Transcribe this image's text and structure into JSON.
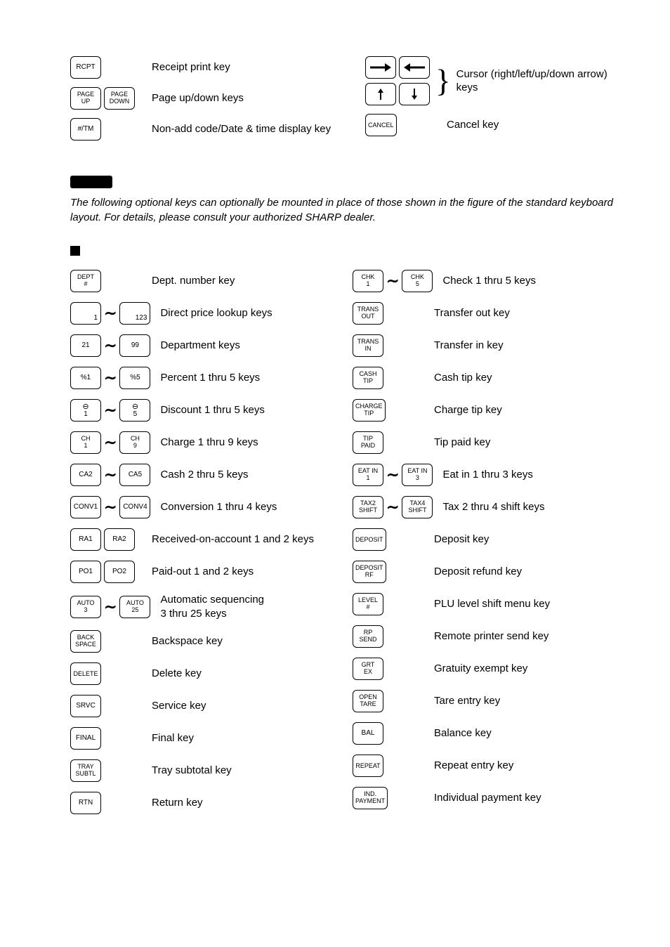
{
  "top": {
    "left": [
      {
        "keys": [
          {
            "label": "RCPT"
          }
        ],
        "desc": "Receipt print key"
      },
      {
        "keys": [
          {
            "label": "PAGE\nUP"
          },
          {
            "label": "PAGE\nDOWN"
          }
        ],
        "desc": "Page up/down keys"
      },
      {
        "keys": [
          {
            "label": "#/TM"
          }
        ],
        "desc": "Non-add code/Date & time display key"
      }
    ],
    "cursor_desc": "Cursor (right/left/up/down arrow) keys",
    "cancel": {
      "key": "CANCEL",
      "desc": "Cancel key"
    }
  },
  "note": "The following optional keys can optionally be mounted in place of those shown in the figure of the standard keyboard layout.  For details, please consult your authorized SHARP dealer.",
  "rows_left": [
    {
      "keys": [
        {
          "label": "DEPT\n#"
        }
      ],
      "desc": "Dept. number key"
    },
    {
      "keys": [
        {
          "label": "1",
          "align": "br"
        }
      ],
      "tilde": true,
      "keys2": [
        {
          "label": "123",
          "align": "br"
        }
      ],
      "desc": "Direct price lookup keys"
    },
    {
      "keys": [
        {
          "label": "21"
        }
      ],
      "tilde": true,
      "keys2": [
        {
          "label": "99"
        }
      ],
      "desc": "Department keys"
    },
    {
      "keys": [
        {
          "label": "%1"
        }
      ],
      "tilde": true,
      "keys2": [
        {
          "label": "%5"
        }
      ],
      "desc": "Percent 1 thru 5 keys"
    },
    {
      "keys": [
        {
          "special": "circle",
          "n": "1"
        }
      ],
      "tilde": true,
      "keys2": [
        {
          "special": "circle",
          "n": "5"
        }
      ],
      "desc": "Discount 1 thru 5 keys"
    },
    {
      "keys": [
        {
          "label": "CH\n1"
        }
      ],
      "tilde": true,
      "keys2": [
        {
          "label": "CH\n9"
        }
      ],
      "desc": "Charge 1 thru 9 keys"
    },
    {
      "keys": [
        {
          "label": "CA2"
        }
      ],
      "tilde": true,
      "keys2": [
        {
          "label": "CA5"
        }
      ],
      "desc": "Cash 2 thru 5 keys"
    },
    {
      "keys": [
        {
          "label": "CONV1"
        }
      ],
      "tilde": true,
      "keys2": [
        {
          "label": "CONV4"
        }
      ],
      "desc": "Conversion 1 thru 4 keys"
    },
    {
      "keys": [
        {
          "label": "RA1"
        },
        {
          "label": "RA2"
        }
      ],
      "desc": "Received-on-account 1 and 2 keys"
    },
    {
      "keys": [
        {
          "label": "PO1"
        },
        {
          "label": "PO2"
        }
      ],
      "desc": "Paid-out 1 and 2 keys"
    },
    {
      "keys": [
        {
          "label": "AUTO\n3"
        }
      ],
      "tilde": true,
      "keys2": [
        {
          "label": "AUTO\n25"
        }
      ],
      "desc": "Automatic sequencing\n3 thru 25 keys"
    },
    {
      "keys": [
        {
          "label": "BACK\nSPACE"
        }
      ],
      "desc": "Backspace key"
    },
    {
      "keys": [
        {
          "label": "DELETE"
        }
      ],
      "desc": "Delete key"
    },
    {
      "keys": [
        {
          "label": "SRVC"
        }
      ],
      "desc": "Service key"
    },
    {
      "keys": [
        {
          "label": "FINAL"
        }
      ],
      "desc": "Final key"
    },
    {
      "keys": [
        {
          "label": "TRAY\nSUBTL"
        }
      ],
      "desc": "Tray subtotal key"
    },
    {
      "keys": [
        {
          "label": "RTN"
        }
      ],
      "desc": "Return key"
    }
  ],
  "rows_right": [
    {
      "keys": [
        {
          "label": "CHK\n1"
        }
      ],
      "tilde": true,
      "keys2": [
        {
          "label": "CHK\n5"
        }
      ],
      "desc": "Check 1 thru 5 keys"
    },
    {
      "keys": [
        {
          "label": "TRANS\nOUT"
        }
      ],
      "desc": "Transfer out key"
    },
    {
      "keys": [
        {
          "label": "TRANS\nIN"
        }
      ],
      "desc": "Transfer in key"
    },
    {
      "keys": [
        {
          "label": "CASH\nTIP"
        }
      ],
      "desc": "Cash tip key"
    },
    {
      "keys": [
        {
          "label": "CHARGE\nTIP"
        }
      ],
      "desc": "Charge tip key"
    },
    {
      "keys": [
        {
          "label": "TIP\nPAID"
        }
      ],
      "desc": "Tip paid key"
    },
    {
      "keys": [
        {
          "label": "EAT IN\n1"
        }
      ],
      "tilde": true,
      "keys2": [
        {
          "label": "EAT IN\n3"
        }
      ],
      "desc": "Eat in 1 thru 3 keys"
    },
    {
      "keys": [
        {
          "label": "TAX2\nSHIFT"
        }
      ],
      "tilde": true,
      "keys2": [
        {
          "label": "TAX4\nSHIFT"
        }
      ],
      "desc": "Tax 2 thru 4 shift keys"
    },
    {
      "keys": [
        {
          "label": "DEPOSIT"
        }
      ],
      "desc": "Deposit key"
    },
    {
      "keys": [
        {
          "label": "DEPOSIT\nRF"
        }
      ],
      "desc": "Deposit refund key"
    },
    {
      "keys": [
        {
          "label": "LEVEL\n#"
        }
      ],
      "desc": "PLU level shift menu key"
    },
    {
      "keys": [
        {
          "label": "RP\nSEND"
        }
      ],
      "desc": "Remote printer send key"
    },
    {
      "keys": [
        {
          "label": "GRT\nEX"
        }
      ],
      "desc": "Gratuity exempt key"
    },
    {
      "keys": [
        {
          "label": "OPEN\nTARE"
        }
      ],
      "desc": "Tare entry key"
    },
    {
      "keys": [
        {
          "label": "BAL"
        }
      ],
      "desc": "Balance  key"
    },
    {
      "keys": [
        {
          "label": "REPEAT"
        }
      ],
      "desc": "Repeat entry  key"
    },
    {
      "keys": [
        {
          "label": "IND.\nPAYMENT"
        }
      ],
      "desc": "Individual payment key"
    }
  ]
}
